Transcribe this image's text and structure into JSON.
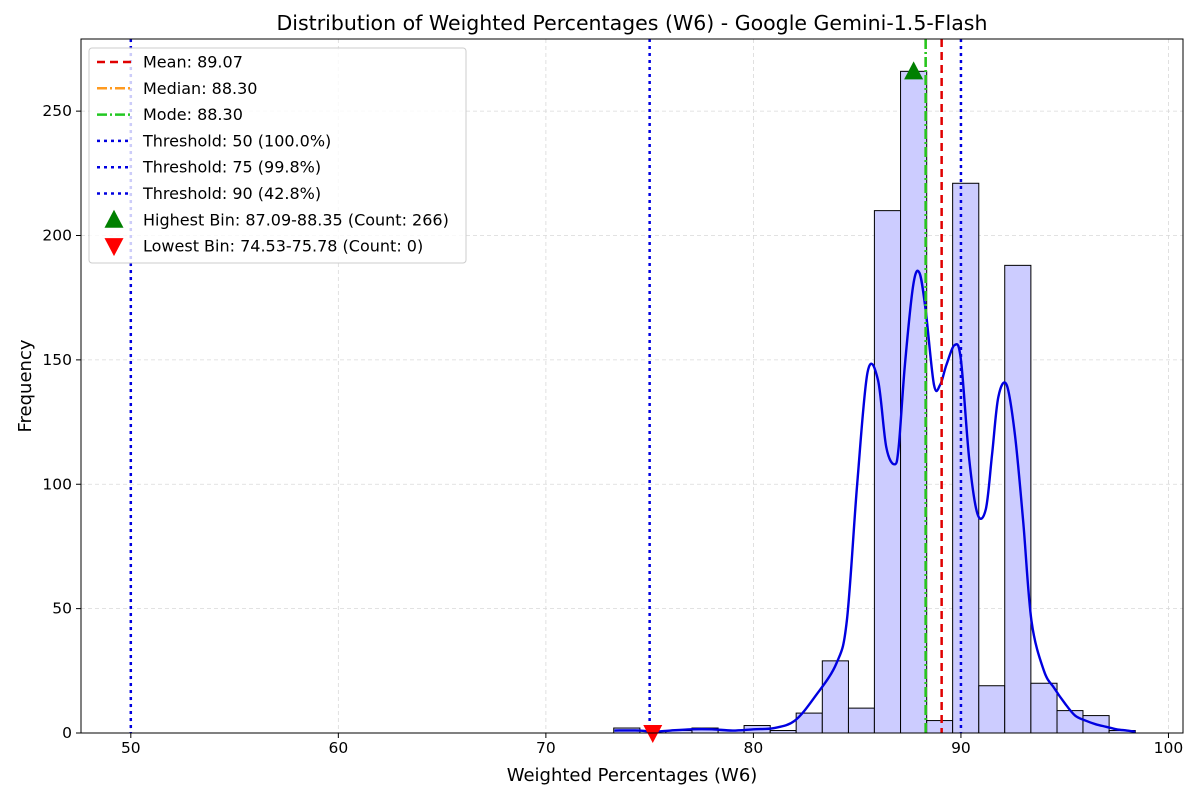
{
  "chart_data": {
    "type": "bar",
    "title": "Distribution of Weighted Percentages (W6) - Google Gemini-1.5-Flash",
    "xlabel": "Weighted Percentages (W6)",
    "ylabel": "Frequency",
    "xlim": [
      47.6,
      100.7
    ],
    "ylim": [
      0,
      279
    ],
    "xticks": [
      50,
      60,
      70,
      80,
      90,
      100
    ],
    "yticks": [
      0,
      50,
      100,
      150,
      200,
      250
    ],
    "grid": true,
    "legend_position": "upper-left",
    "bin_edges": [
      73.27,
      74.53,
      75.78,
      77.04,
      78.3,
      79.55,
      80.81,
      82.06,
      83.32,
      84.58,
      85.83,
      87.09,
      88.35,
      89.6,
      90.86,
      92.11,
      93.37,
      94.63,
      95.88,
      97.14,
      98.4
    ],
    "counts": [
      2,
      0,
      1,
      2,
      1,
      3,
      1,
      8,
      29,
      10,
      210,
      266,
      5,
      221,
      19,
      188,
      20,
      9,
      7,
      1
    ],
    "bar_color": "#ccccff",
    "kde": {
      "name": "KDE",
      "color": "#0000e0",
      "x": [
        73.3,
        74.5,
        75.2,
        76.0,
        77.0,
        78.0,
        79.0,
        80.0,
        81.0,
        82.0,
        83.0,
        84.0,
        84.5,
        85.0,
        85.5,
        86.0,
        86.4,
        86.8,
        87.0,
        87.3,
        87.7,
        88.0,
        88.3,
        88.7,
        89.0,
        89.3,
        89.7,
        90.0,
        90.4,
        90.8,
        91.2,
        91.5,
        91.8,
        92.2,
        92.6,
        93.0,
        93.4,
        94.0,
        94.5,
        95.0,
        95.5,
        96.0,
        96.5,
        97.0,
        97.5,
        98.0,
        98.4
      ],
      "y": [
        1,
        1,
        0.5,
        1,
        1.5,
        1.5,
        1,
        1.5,
        2,
        5,
        15,
        28,
        45,
        100,
        145,
        142,
        115,
        108,
        115,
        148,
        180,
        185,
        170,
        140,
        140,
        148,
        156,
        150,
        110,
        88,
        90,
        112,
        135,
        140,
        120,
        85,
        45,
        25,
        18,
        12,
        7,
        5,
        3.5,
        2.5,
        1.5,
        1,
        0.5
      ]
    },
    "reference_lines": [
      {
        "label": "Mean: 89.07",
        "x": 89.07,
        "color": "#e00000",
        "dash": "8,5"
      },
      {
        "label": "Median: 88.30",
        "x": 88.3,
        "color": "#ff9a1f",
        "dash": "10,3,2,3"
      },
      {
        "label": "Mode: 88.30",
        "x": 88.3,
        "color": "#22c822",
        "dash": "10,3,2,3"
      },
      {
        "label": "Threshold: 50 (100.0%)",
        "x": 50,
        "color": "#0000e0",
        "dash": "3,4"
      },
      {
        "label": "Threshold: 75 (99.8%)",
        "x": 75,
        "color": "#0000e0",
        "dash": "3,4"
      },
      {
        "label": "Threshold: 90 (42.8%)",
        "x": 90,
        "color": "#0000e0",
        "dash": "3,4"
      }
    ],
    "markers": [
      {
        "label": "Highest Bin: 87.09-88.35 (Count: 266)",
        "x": 87.72,
        "y": 266,
        "shape": "triangle-up",
        "color": "#008000"
      },
      {
        "label": "Lowest Bin: 74.53-75.78 (Count: 0)",
        "x": 75.15,
        "y": 0,
        "shape": "triangle-down",
        "color": "#ff0000"
      }
    ]
  }
}
